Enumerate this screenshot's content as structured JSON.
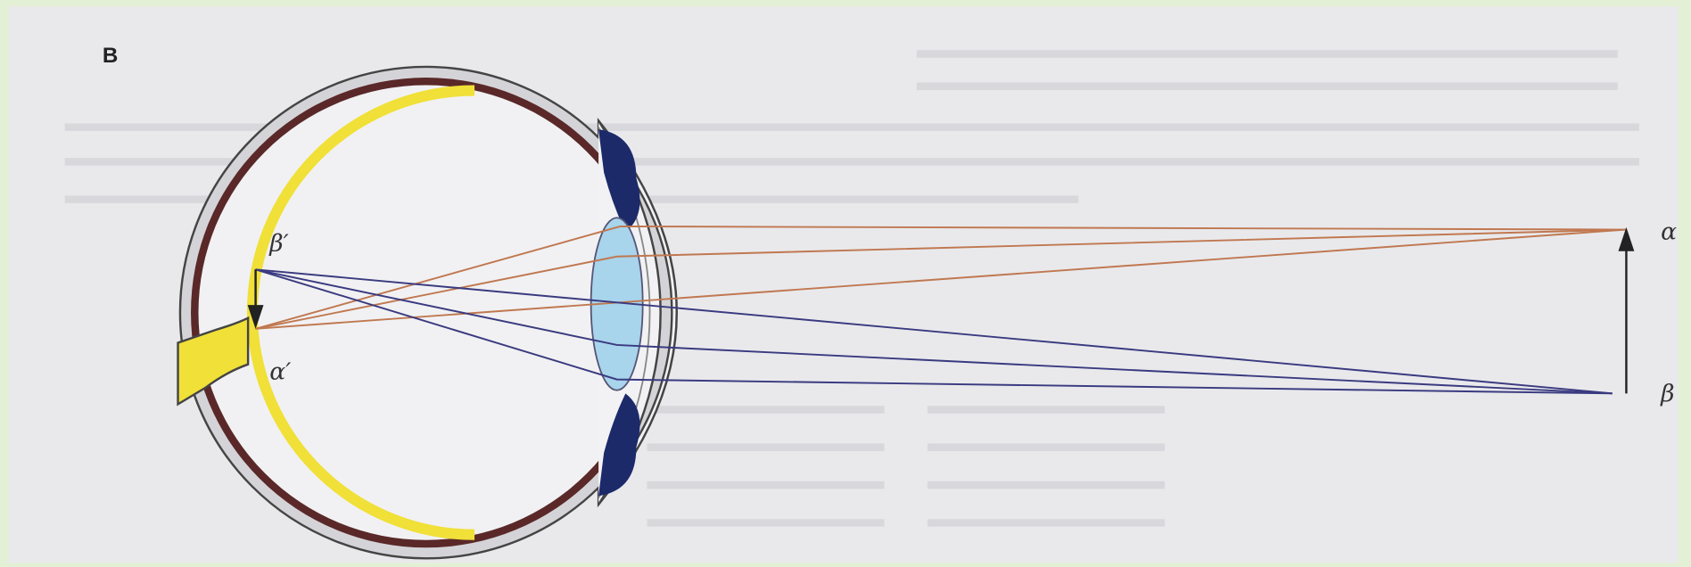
{
  "panel_label": "B",
  "labels": [
    {
      "id": "beta-prime",
      "text": "β′"
    },
    {
      "id": "alpha-prime",
      "text": "α′"
    },
    {
      "id": "alpha",
      "text": "α"
    },
    {
      "id": "beta",
      "text": "β"
    }
  ]
}
